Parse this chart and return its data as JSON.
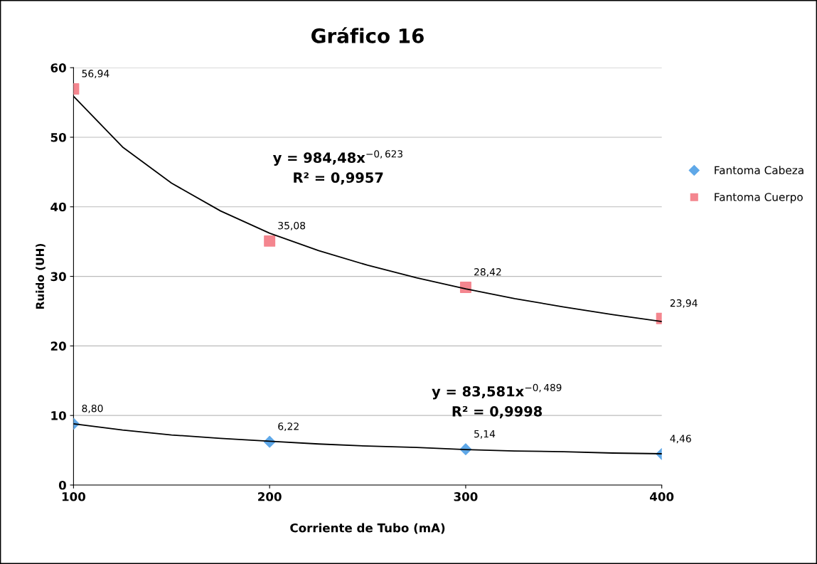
{
  "chart_data": {
    "type": "scatter",
    "title": "Gráfico 16",
    "xlabel": "Corriente de Tubo (mA)",
    "ylabel": "Ruido (UH)",
    "x": [
      100,
      200,
      300,
      400
    ],
    "series": [
      {
        "name": "Fantoma Cabeza",
        "color": "#5fa8e8",
        "marker": "diamond",
        "values": [
          8.8,
          6.22,
          5.14,
          4.46
        ],
        "value_labels": [
          "8,80",
          "6,22",
          "5,14",
          "4,46"
        ]
      },
      {
        "name": "Fantoma Cuerpo",
        "color": "#f4868f",
        "marker": "square",
        "values": [
          56.94,
          35.08,
          28.42,
          23.94
        ],
        "value_labels": [
          "56,94",
          "35,08",
          "28,42",
          "23,94"
        ]
      },
      {
        "type": "line",
        "color": "#000000",
        "marker": "none",
        "x": [
          100,
          125,
          150,
          175,
          200,
          225,
          250,
          275,
          300,
          325,
          350,
          375,
          400
        ],
        "values": [
          55.9,
          48.6,
          43.4,
          39.4,
          36.2,
          33.7,
          31.6,
          29.8,
          28.2,
          26.8,
          25.6,
          24.5,
          23.5
        ]
      },
      {
        "type": "line",
        "color": "#000000",
        "marker": "none",
        "x": [
          100,
          125,
          150,
          175,
          200,
          225,
          250,
          275,
          300,
          325,
          350,
          375,
          400
        ],
        "values": [
          8.8,
          7.9,
          7.2,
          6.7,
          6.3,
          5.9,
          5.6,
          5.4,
          5.1,
          4.9,
          4.8,
          4.6,
          4.5
        ]
      }
    ],
    "annotations": [
      "y = 984,48x$^{−0,623}$\nR² = 0,9957",
      "y = 83,581x$^{−0,489}$\nR² = 0,9998"
    ],
    "xlim": [
      100,
      400
    ],
    "xticks": [
      100,
      200,
      300,
      400
    ],
    "ylim": [
      0,
      60
    ],
    "yticks": [
      0,
      10,
      20,
      30,
      40,
      50,
      60
    ],
    "grid": "y",
    "legend": "right",
    "line_style": "solid"
  }
}
